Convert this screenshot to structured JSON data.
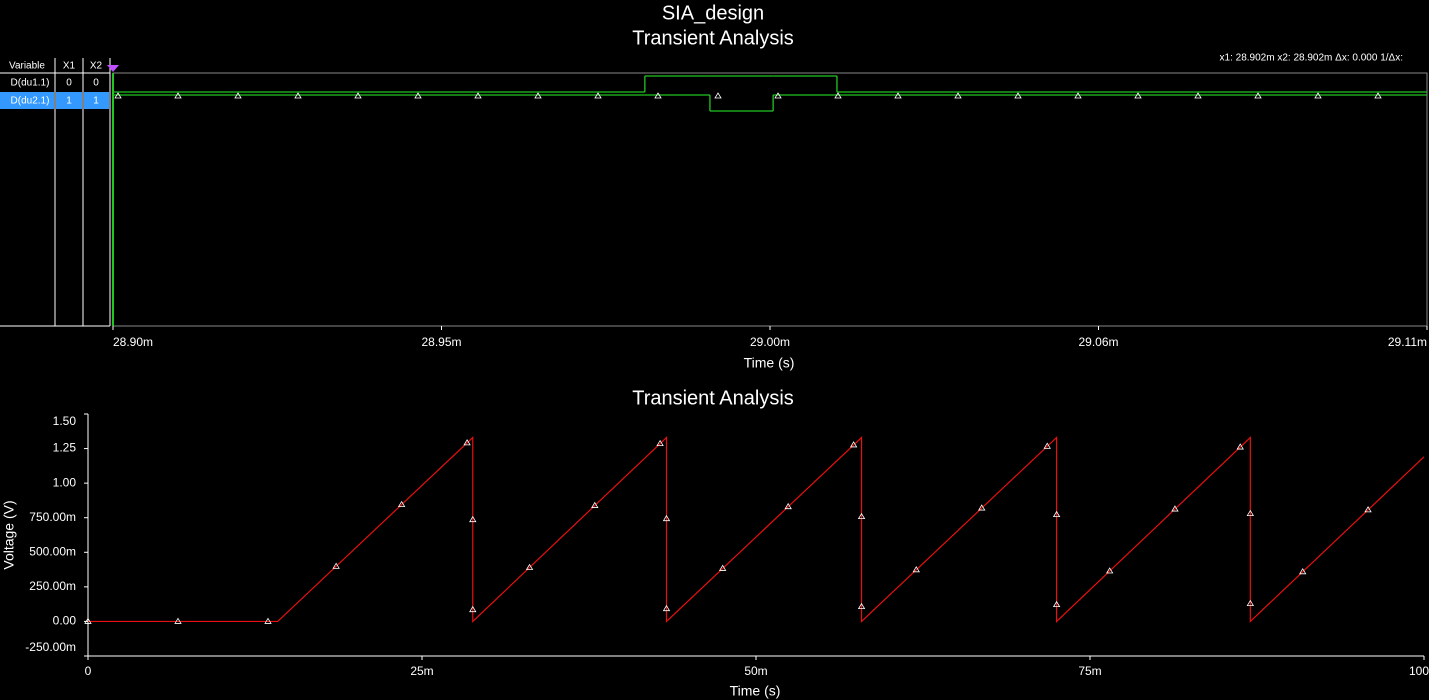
{
  "window": {
    "title": "SIA_design",
    "cursor_info": "x1: 28.902m  x2: 28.902m  Δx:  0.000  1/Δx:",
    "table": {
      "headers": [
        "Variable",
        "X1",
        "X2"
      ],
      "rows": [
        [
          "D(du1.1)",
          0,
          0
        ],
        [
          "D(du2.1)",
          1,
          1
        ]
      ]
    }
  },
  "chart_data": [
    {
      "type": "step",
      "title": "Transient Analysis",
      "x_label": "Time (s)",
      "x": [
        0.0289,
        0.028985,
        0.0289954,
        0.0290055,
        0.0290157,
        0.02911
      ],
      "series": [
        {
          "name": "D(du1.1)",
          "color": "#22c522",
          "values": [
            0,
            1,
            1,
            1,
            0,
            0
          ]
        },
        {
          "name": "D(du2.1)",
          "color": "#22c522",
          "values": [
            1,
            1,
            0,
            1,
            1,
            1
          ]
        }
      ],
      "xlim": [
        0.0289,
        0.02911
      ],
      "xticks": [
        {
          "value": 0.0289,
          "label": "28.90m"
        },
        {
          "value": 0.0289525,
          "label": "28.95m"
        },
        {
          "value": 0.029005,
          "label": "29.00m"
        },
        {
          "value": 0.0290575,
          "label": "29.06m"
        },
        {
          "value": 0.02911,
          "label": "29.11m"
        }
      ]
    },
    {
      "type": "line",
      "title": "Transient Analysis",
      "x_label": "Time (s)",
      "y_label": "Voltage (V)",
      "x": [
        0,
        0.0142,
        0.0288,
        0.0288,
        0.0433,
        0.0433,
        0.0579,
        0.0579,
        0.0725,
        0.0725,
        0.087,
        0.087,
        0.1
      ],
      "series": [
        {
          "name": "V",
          "color": "#e81010",
          "values": [
            0,
            0,
            1.33,
            0,
            1.33,
            0,
            1.33,
            0,
            1.33,
            0,
            1.33,
            0,
            1.19
          ]
        }
      ],
      "xlim": [
        0,
        0.1
      ],
      "ylim": [
        -0.25,
        1.5
      ],
      "xticks": [
        0,
        {
          "value": 0.025,
          "label": "25m"
        },
        {
          "value": 0.05,
          "label": "50m"
        },
        {
          "value": 0.075,
          "label": "75m"
        },
        {
          "value": 0.1,
          "label": "100m"
        }
      ],
      "yticks": [
        {
          "value": 1.5,
          "label": "1.50"
        },
        {
          "value": 1.25,
          "label": "1.25"
        },
        {
          "value": 1,
          "label": "1.00"
        },
        {
          "value": 0.75,
          "label": "750.00m"
        },
        {
          "value": 0.5,
          "label": "500.00m"
        },
        {
          "value": 0.25,
          "label": "250.00m"
        },
        {
          "value": 0,
          "label": "0.00"
        },
        {
          "value": -0.25,
          "label": "-250.00m"
        }
      ]
    }
  ]
}
